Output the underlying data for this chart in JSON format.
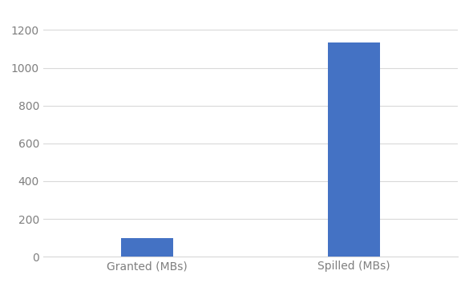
{
  "categories": [
    "Granted (MBs)",
    "Spilled (MBs)"
  ],
  "values": [
    100,
    1135
  ],
  "bar_color": "#4472C4",
  "bar_width": 0.25,
  "ylim": [
    0,
    1300
  ],
  "yticks": [
    0,
    200,
    400,
    600,
    800,
    1000,
    1200
  ],
  "background_color": "#ffffff",
  "grid_color": "#d9d9d9",
  "tick_label_fontsize": 10,
  "tick_label_color": "#7f7f7f"
}
